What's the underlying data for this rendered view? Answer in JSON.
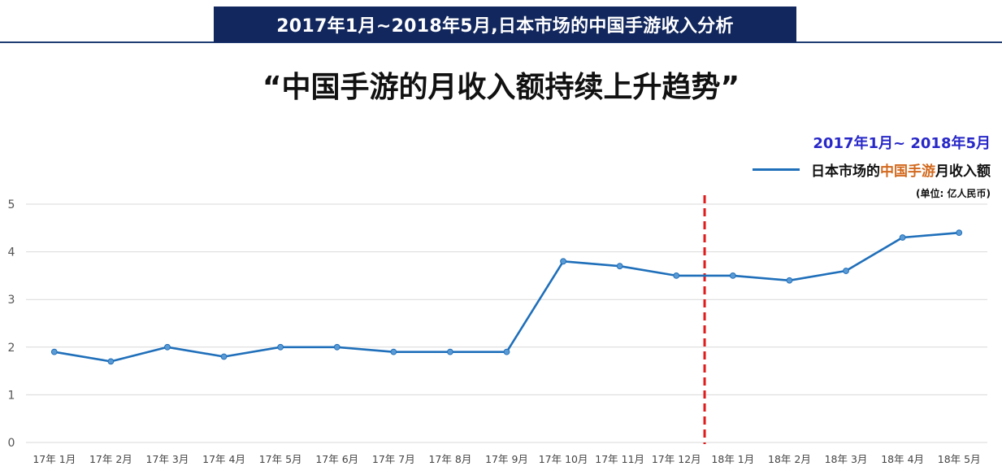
{
  "header": {
    "banner_title": "2017年1月~2018年5月,日本市场的中国手游收入分析",
    "headline": "“中国手游的月收入额持续上升趋势”"
  },
  "legend": {
    "date_range": "2017年1月~ 2018年5月",
    "series_prefix": "日本市场的",
    "series_highlight": "中国手游",
    "series_suffix": "月收入额",
    "unit": "(单位: 亿人民币)"
  },
  "colors": {
    "banner_bg": "#12275d",
    "line": "#1f6fba",
    "marker_fill": "#5b9bd5",
    "divider": "#e01b1b",
    "grid": "#d9d9d9",
    "highlight_text": "#d2691e",
    "range_text": "#2828c8"
  },
  "chart_data": {
    "type": "line",
    "categories": [
      "17年 1月",
      "17年 2月",
      "17年 3月",
      "17年 4月",
      "17年 5月",
      "17年 6月",
      "17年 7月",
      "17年 8月",
      "17年 9月",
      "17年 10月",
      "17年 11月",
      "17年 12月",
      "18年 1月",
      "18年 2月",
      "18年 3月",
      "18年 4月",
      "18年 5月"
    ],
    "series": [
      {
        "name": "日本市场的中国手游月收入额",
        "values": [
          1.9,
          1.7,
          2.0,
          1.8,
          2.0,
          2.0,
          1.9,
          1.9,
          1.9,
          3.8,
          3.7,
          3.5,
          3.5,
          3.4,
          3.6,
          4.3,
          4.4
        ]
      }
    ],
    "ylim": [
      0,
      5
    ],
    "yticks": [
      0,
      1,
      2,
      3,
      4,
      5
    ],
    "grid": true,
    "divider_between": [
      "17年 12月",
      "18年 1月"
    ],
    "divider_style": "red dashed vertical line",
    "legend_position": "top-right"
  }
}
